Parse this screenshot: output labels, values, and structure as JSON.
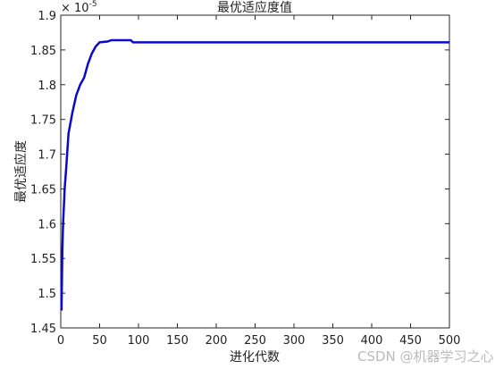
{
  "chart_data": {
    "type": "line",
    "title": "最优适应度值",
    "xlabel": "进化代数",
    "ylabel": "最优适应度",
    "y_multiplier": {
      "base": "× 10",
      "power": "-5"
    },
    "x": [
      1,
      2,
      3,
      5,
      7,
      10,
      15,
      20,
      25,
      30,
      35,
      40,
      45,
      50,
      60,
      65,
      90,
      93,
      500
    ],
    "series": [
      {
        "color": "#0a0ac8",
        "values": [
          1.475,
          1.56,
          1.6,
          1.65,
          1.68,
          1.73,
          1.76,
          1.785,
          1.8,
          1.81,
          1.83,
          1.845,
          1.855,
          1.861,
          1.862,
          1.864,
          1.864,
          1.861,
          1.861
        ]
      }
    ],
    "xlim": [
      0,
      500
    ],
    "xticks": [
      0,
      50,
      100,
      150,
      200,
      250,
      300,
      350,
      400,
      450,
      500
    ],
    "ylim": [
      1.45,
      1.9
    ],
    "yticks": [
      1.45,
      1.5,
      1.55,
      1.6,
      1.65,
      1.7,
      1.75,
      1.8,
      1.85,
      1.9
    ],
    "watermark": "CSDN @机器学习之心"
  }
}
